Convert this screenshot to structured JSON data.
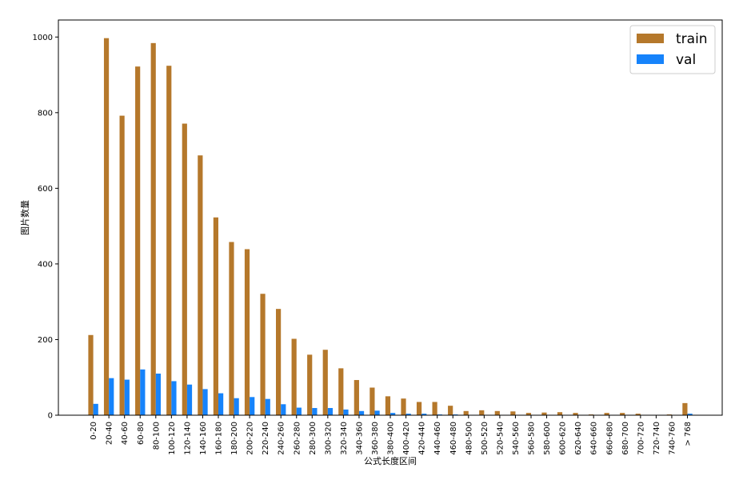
{
  "chart_data": {
    "type": "bar",
    "title": "",
    "xlabel": "公式长度区间",
    "ylabel": "图片数量",
    "ylim": [
      0,
      1045
    ],
    "yticks": [
      0,
      200,
      400,
      600,
      800,
      1000
    ],
    "categories": [
      "0-20",
      "20-40",
      "40-60",
      "60-80",
      "80-100",
      "100-120",
      "120-140",
      "140-160",
      "160-180",
      "180-200",
      "200-220",
      "220-240",
      "240-260",
      "260-280",
      "280-300",
      "300-320",
      "320-340",
      "340-360",
      "360-380",
      "380-400",
      "400-420",
      "420-440",
      "440-460",
      "460-480",
      "480-500",
      "500-520",
      "520-540",
      "540-560",
      "560-580",
      "580-600",
      "600-620",
      "620-640",
      "640-660",
      "660-680",
      "680-700",
      "700-720",
      "720-740",
      "740-760",
      "> 768"
    ],
    "series": [
      {
        "name": "train",
        "color": "#b5782b",
        "values": [
          212,
          997,
          792,
          922,
          984,
          924,
          771,
          687,
          523,
          458,
          439,
          321,
          281,
          202,
          160,
          173,
          124,
          93,
          73,
          50,
          44,
          35,
          35,
          25,
          11,
          13,
          11,
          10,
          6,
          7,
          8,
          6,
          2,
          6,
          6,
          4,
          1,
          2,
          32
        ]
      },
      {
        "name": "val",
        "color": "#1683fb",
        "values": [
          30,
          98,
          94,
          121,
          110,
          90,
          81,
          69,
          58,
          45,
          48,
          43,
          29,
          20,
          19,
          19,
          15,
          11,
          12,
          6,
          4,
          4,
          2,
          2,
          1,
          1,
          1,
          1,
          1,
          1,
          1,
          1,
          1,
          1,
          1,
          1,
          0,
          0,
          4
        ]
      }
    ],
    "grid": false,
    "legend_position": "top-right"
  }
}
